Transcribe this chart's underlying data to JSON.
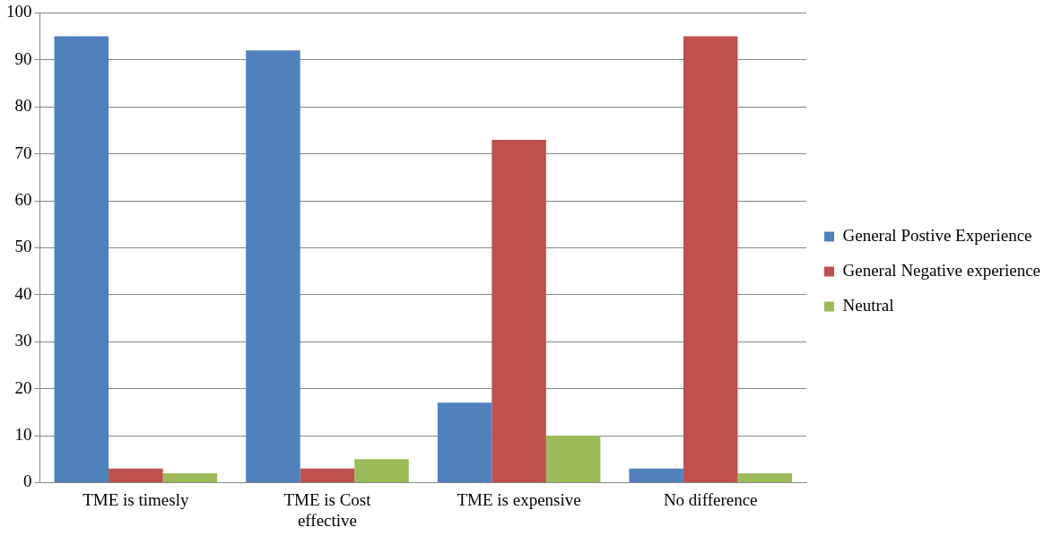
{
  "chart_data": {
    "type": "bar",
    "categories": [
      "TME is timesly",
      "TME is Cost effective",
      "TME is expensive",
      "No difference"
    ],
    "series": [
      {
        "name": "General Postive Experience",
        "color": "#4f81bd",
        "values": [
          95,
          92,
          17,
          3
        ]
      },
      {
        "name": "General Negative experience",
        "color": "#c0504d",
        "values": [
          3,
          3,
          73,
          95
        ]
      },
      {
        "name": "Neutral",
        "color": "#9bbb59",
        "values": [
          2,
          5,
          10,
          2
        ]
      }
    ],
    "ylim": [
      0,
      100
    ],
    "yticks": [
      0,
      10,
      20,
      30,
      40,
      50,
      60,
      70,
      80,
      90,
      100
    ],
    "grid": "y",
    "legend": "right"
  }
}
